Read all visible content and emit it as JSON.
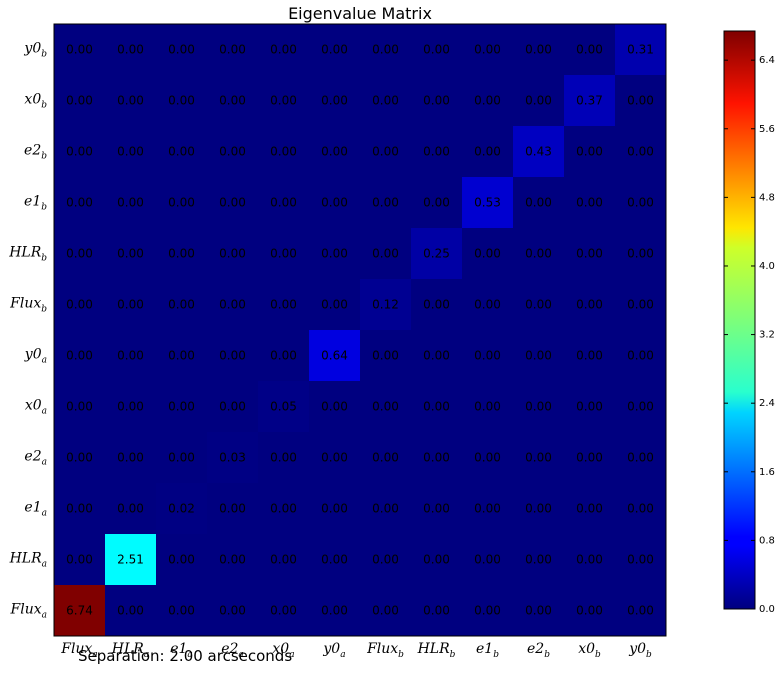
{
  "chart_data": {
    "type": "heatmap",
    "title": "Eigenvalue Matrix",
    "x_categories": [
      {
        "base": "Flux",
        "sub": "a"
      },
      {
        "base": "HLR",
        "sub": "a"
      },
      {
        "base": "e1",
        "sub": "a"
      },
      {
        "base": "e2",
        "sub": "a"
      },
      {
        "base": "x0",
        "sub": "a"
      },
      {
        "base": "y0",
        "sub": "a"
      },
      {
        "base": "Flux",
        "sub": "b"
      },
      {
        "base": "HLR",
        "sub": "b"
      },
      {
        "base": "e1",
        "sub": "b"
      },
      {
        "base": "e2",
        "sub": "b"
      },
      {
        "base": "x0",
        "sub": "b"
      },
      {
        "base": "y0",
        "sub": "b"
      }
    ],
    "y_categories_top_to_bottom": [
      {
        "base": "y0",
        "sub": "b"
      },
      {
        "base": "x0",
        "sub": "b"
      },
      {
        "base": "e2",
        "sub": "b"
      },
      {
        "base": "e1",
        "sub": "b"
      },
      {
        "base": "HLR",
        "sub": "b"
      },
      {
        "base": "Flux",
        "sub": "b"
      },
      {
        "base": "y0",
        "sub": "a"
      },
      {
        "base": "x0",
        "sub": "a"
      },
      {
        "base": "e2",
        "sub": "a"
      },
      {
        "base": "e1",
        "sub": "a"
      },
      {
        "base": "HLR",
        "sub": "a"
      },
      {
        "base": "Flux",
        "sub": "a"
      }
    ],
    "values_top_to_bottom": [
      [
        0.0,
        0.0,
        0.0,
        0.0,
        0.0,
        0.0,
        0.0,
        0.0,
        0.0,
        0.0,
        0.0,
        0.31
      ],
      [
        0.0,
        0.0,
        0.0,
        0.0,
        0.0,
        0.0,
        0.0,
        0.0,
        0.0,
        0.0,
        0.37,
        0.0
      ],
      [
        0.0,
        0.0,
        0.0,
        0.0,
        0.0,
        0.0,
        0.0,
        0.0,
        0.0,
        0.43,
        0.0,
        0.0
      ],
      [
        0.0,
        0.0,
        0.0,
        0.0,
        0.0,
        0.0,
        0.0,
        0.0,
        0.53,
        0.0,
        0.0,
        0.0
      ],
      [
        0.0,
        0.0,
        0.0,
        0.0,
        0.0,
        0.0,
        0.0,
        0.25,
        0.0,
        0.0,
        0.0,
        0.0
      ],
      [
        0.0,
        0.0,
        0.0,
        0.0,
        0.0,
        0.0,
        0.12,
        0.0,
        0.0,
        0.0,
        0.0,
        0.0
      ],
      [
        0.0,
        0.0,
        0.0,
        0.0,
        0.0,
        0.64,
        0.0,
        0.0,
        0.0,
        0.0,
        0.0,
        0.0
      ],
      [
        0.0,
        0.0,
        0.0,
        0.0,
        0.05,
        0.0,
        0.0,
        0.0,
        0.0,
        0.0,
        0.0,
        0.0
      ],
      [
        0.0,
        0.0,
        0.0,
        0.03,
        0.0,
        0.0,
        0.0,
        0.0,
        0.0,
        0.0,
        0.0,
        0.0
      ],
      [
        0.0,
        0.0,
        0.02,
        0.0,
        0.0,
        0.0,
        0.0,
        0.0,
        0.0,
        0.0,
        0.0,
        0.0
      ],
      [
        0.0,
        2.51,
        0.0,
        0.0,
        0.0,
        0.0,
        0.0,
        0.0,
        0.0,
        0.0,
        0.0,
        0.0
      ],
      [
        6.74,
        0.0,
        0.0,
        0.0,
        0.0,
        0.0,
        0.0,
        0.0,
        0.0,
        0.0,
        0.0,
        0.0
      ]
    ],
    "value_format_decimals": 2,
    "colormap": "jet",
    "color_range": [
      0.0,
      6.74
    ],
    "colorbar_ticks": [
      "0.0",
      "0.8",
      "1.6",
      "2.4",
      "3.2",
      "4.0",
      "4.8",
      "5.6",
      "6.4"
    ],
    "colorbar_tick_values": [
      0.0,
      0.8,
      1.6,
      2.4,
      3.2,
      4.0,
      4.8,
      5.6,
      6.4
    ],
    "grid": false,
    "legend": "colorbar-right"
  },
  "annotation": "Separation: 2.00 arcseconds"
}
